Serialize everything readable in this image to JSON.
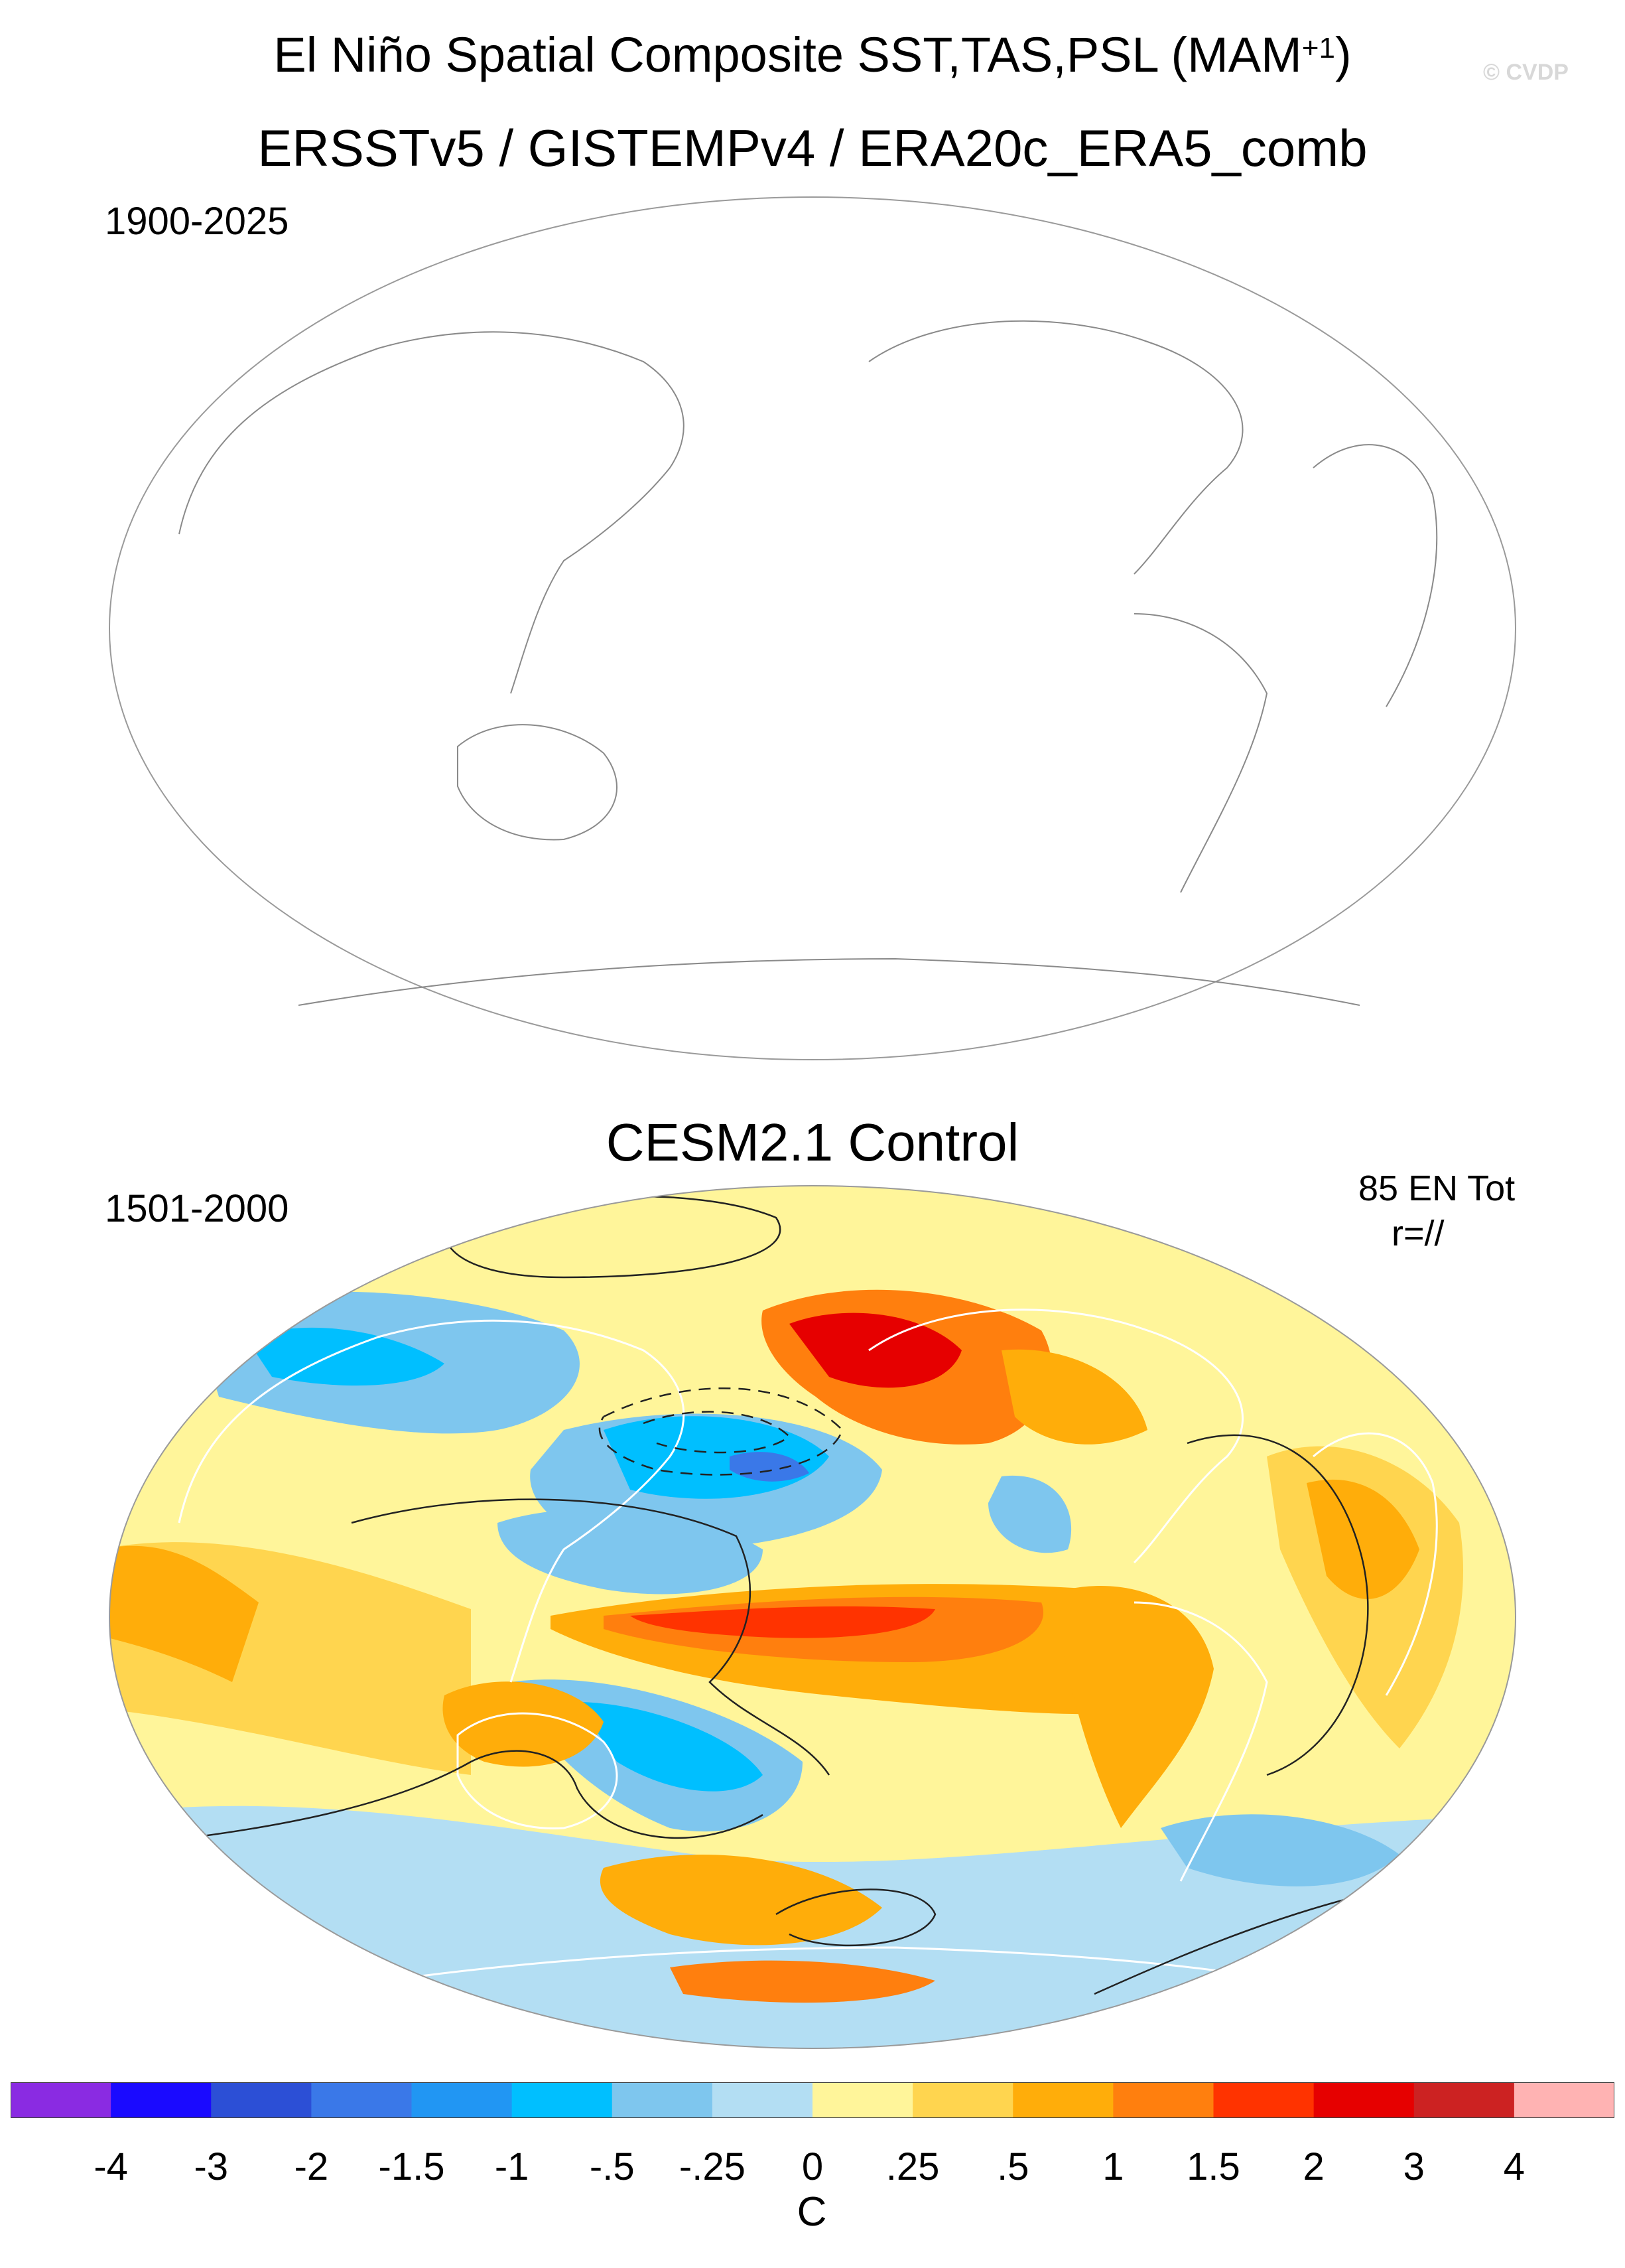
{
  "figure": {
    "title_main": "El Niño Spatial Composite SST,TAS,PSL (MAM",
    "title_sup": "+1",
    "title_close": ")",
    "watermark": "© CVDP"
  },
  "panels": [
    {
      "title": "ERSSTv5 / GISTEMPv4 / ERA20c_ERA5_comb",
      "period": "1900-2025",
      "state": "no data (map outline only)"
    },
    {
      "title": "CESM2.1 Control",
      "period": "1501-2000",
      "count_label": "85 EN Tot",
      "r_label": "r=//"
    }
  ],
  "colorbar": {
    "units": "C",
    "colors": [
      "#8a2be2",
      "#1a0aff",
      "#2c4fd6",
      "#3a78e8",
      "#2196f3",
      "#00bfff",
      "#7ec6ee",
      "#b3def3",
      "#fff59a",
      "#ffd54f",
      "#ffad0a",
      "#ff7f0e",
      "#ff3300",
      "#e60000",
      "#cc2222",
      "#ffb3b3"
    ],
    "tick_labels": [
      "-4",
      "-3",
      "-2",
      "-1.5",
      "-1",
      "-.5",
      "-.25",
      "0",
      ".25",
      ".5",
      "1",
      "1.5",
      "2",
      "3",
      "4"
    ]
  }
}
